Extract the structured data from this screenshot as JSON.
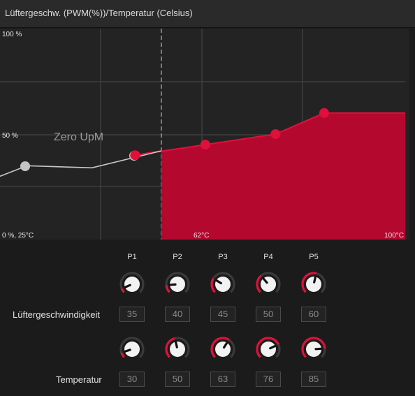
{
  "window": {
    "title": "Lüftergeschw. (PWM(%))/Temperatur (Celsius)"
  },
  "colors": {
    "accent": "#b5082f",
    "accent_bright": "#e0103a",
    "knob_track": "#3a3a3a",
    "zero_line": "#c8c8c8"
  },
  "chart_data": {
    "type": "area",
    "title": "Lüftergeschw. (PWM(%))/Temperatur (Celsius)",
    "x_unit": "Celsius",
    "y_unit": "PWM %",
    "xlim": [
      25,
      100
    ],
    "ylim": [
      0,
      100
    ],
    "x_tick_labels": [
      "0 %, 25°C",
      "62°C",
      "100°C"
    ],
    "y_tick_labels": [
      "100 %",
      "50 %"
    ],
    "grid": true,
    "zero_rpm_threshold_c": 30,
    "zero_rpm_label": "Zero UpM",
    "zero_rpm_points": [
      {
        "x": 25,
        "y": 30
      },
      {
        "x": 30,
        "y": 35
      },
      {
        "x": 42,
        "y": 34
      }
    ],
    "curve_points": [
      {
        "name": "P2",
        "x": 50,
        "y": 40
      },
      {
        "name": "P3",
        "x": 63,
        "y": 45
      },
      {
        "name": "P4",
        "x": 76,
        "y": 50
      },
      {
        "name": "P5",
        "x": 85,
        "y": 60
      },
      {
        "x": 100,
        "y": 60
      }
    ]
  },
  "points": [
    {
      "label": "P1",
      "speed": "35",
      "temp": "30"
    },
    {
      "label": "P2",
      "speed": "40",
      "temp": "50"
    },
    {
      "label": "P3",
      "speed": "45",
      "temp": "63"
    },
    {
      "label": "P4",
      "speed": "50",
      "temp": "76"
    },
    {
      "label": "P5",
      "speed": "60",
      "temp": "85"
    }
  ],
  "rows": {
    "speed_label": "Lüftergeschwindigkeit",
    "temp_label": "Temperatur"
  },
  "knob_levels": {
    "speed": [
      0.08,
      0.15,
      0.28,
      0.35,
      0.55
    ],
    "temp": [
      0.1,
      0.45,
      0.62,
      0.74,
      0.82
    ]
  }
}
